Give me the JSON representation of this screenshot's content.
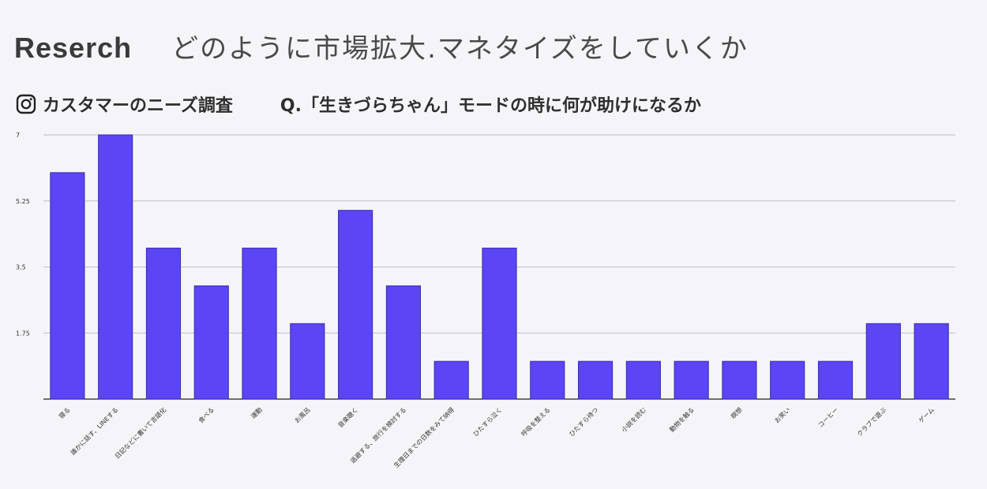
{
  "header": {
    "brand": "Reserch",
    "headline": "どのように市場拡大.マネタイズをしていくか"
  },
  "subheader": {
    "icon": "instagram-icon",
    "left": "カスタマーのニーズ調査",
    "right": "Q.「生きづらちゃん」モードの時に何が助けになるか"
  },
  "colors": {
    "bar": "#5b45f5",
    "bar_stroke": "#3a2cb0",
    "grid": "#bdbdc7",
    "background": "#f5f5f9"
  },
  "chart_data": {
    "type": "bar",
    "categories": [
      "寝る",
      "誰かに話す、LINEする",
      "日記などに書いて言語化",
      "食べる",
      "運動",
      "お風呂",
      "音楽聴く",
      "逃避する、旅行を検討する",
      "生理日までの日数をみて納得",
      "ひたすら泣く",
      "呼吸を整える",
      "ひたすら待つ",
      "小説を読む",
      "動物を触る",
      "瞑想",
      "お笑い",
      "コーヒー",
      "クラブで遊ぶ",
      "ゲーム"
    ],
    "values": [
      6,
      7,
      4,
      3,
      4,
      2,
      5,
      3,
      1,
      4,
      1,
      1,
      1,
      1,
      1,
      1,
      1,
      2,
      2
    ],
    "yticks": [
      "1.75",
      "3.5",
      "5.25",
      "7"
    ],
    "ylim": [
      0,
      7
    ],
    "grid": true
  }
}
